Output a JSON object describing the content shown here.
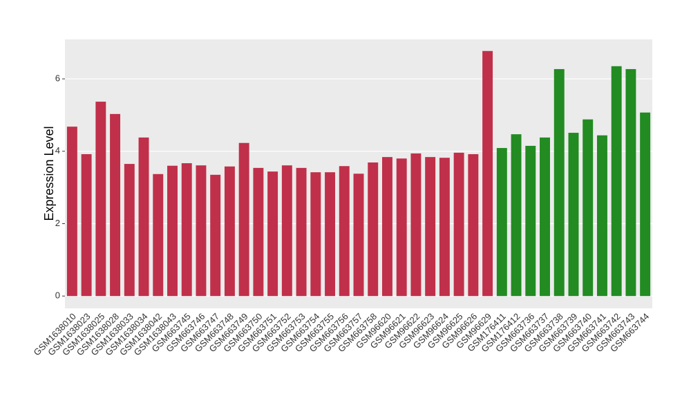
{
  "chart_data": {
    "type": "bar",
    "y_label": "Expression Level",
    "categories": [
      "GSM1638010",
      "GSM1638023",
      "GSM1638025",
      "GSM1638028",
      "GSM1638033",
      "GSM1638034",
      "GSM1638042",
      "GSM1638043",
      "GSM663745",
      "GSM663746",
      "GSM663747",
      "GSM663748",
      "GSM663749",
      "GSM663750",
      "GSM663751",
      "GSM663752",
      "GSM663753",
      "GSM663754",
      "GSM663755",
      "GSM663756",
      "GSM663757",
      "GSM663758",
      "GSM96620",
      "GSM96621",
      "GSM96622",
      "GSM96623",
      "GSM96624",
      "GSM96625",
      "GSM96626",
      "GSM96629",
      "GSM176411",
      "GSM176412",
      "GSM663736",
      "GSM663737",
      "GSM663738",
      "GSM663739",
      "GSM663740",
      "GSM663741",
      "GSM663742",
      "GSM663743",
      "GSM663744"
    ],
    "values": [
      4.68,
      3.92,
      5.37,
      5.03,
      3.65,
      4.38,
      3.37,
      3.6,
      3.67,
      3.61,
      3.35,
      3.58,
      4.23,
      3.54,
      3.44,
      3.61,
      3.54,
      3.42,
      3.42,
      3.59,
      3.38,
      3.69,
      3.84,
      3.8,
      3.94,
      3.84,
      3.82,
      3.96,
      3.92,
      6.77,
      4.09,
      4.47,
      4.15,
      4.38,
      6.27,
      4.51,
      4.88,
      4.44,
      6.35,
      6.27,
      5.07
    ],
    "colors": [
      "#c0304a",
      "#c0304a",
      "#c0304a",
      "#c0304a",
      "#c0304a",
      "#c0304a",
      "#c0304a",
      "#c0304a",
      "#c0304a",
      "#c0304a",
      "#c0304a",
      "#c0304a",
      "#c0304a",
      "#c0304a",
      "#c0304a",
      "#c0304a",
      "#c0304a",
      "#c0304a",
      "#c0304a",
      "#c0304a",
      "#c0304a",
      "#c0304a",
      "#c0304a",
      "#c0304a",
      "#c0304a",
      "#c0304a",
      "#c0304a",
      "#c0304a",
      "#c0304a",
      "#c0304a",
      "#228b22",
      "#228b22",
      "#228b22",
      "#228b22",
      "#228b22",
      "#228b22",
      "#228b22",
      "#228b22",
      "#228b22",
      "#228b22",
      "#228b22"
    ],
    "ylim": [
      -0.34,
      7.09
    ],
    "yticks": [
      0,
      2,
      4,
      6
    ],
    "grid": true
  }
}
